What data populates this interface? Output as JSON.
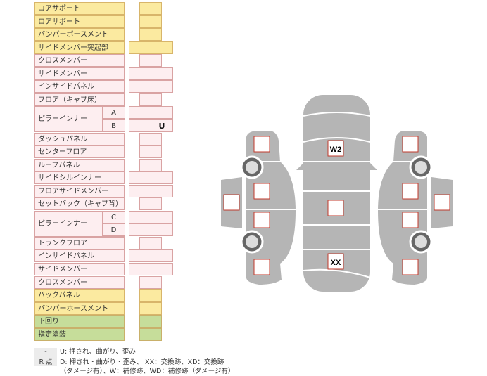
{
  "rows": [
    {
      "label": "コアサポート",
      "color": "y",
      "cells": 1
    },
    {
      "label": "ロアサポート",
      "color": "y",
      "cells": 1
    },
    {
      "label": "バンパーボースメント",
      "color": "y",
      "cells": 1
    },
    {
      "label": "サイドメンバー突起部",
      "color": "y",
      "cells": 2
    },
    {
      "label": "クロスメンバー",
      "color": "p",
      "cells": 1
    },
    {
      "label": "サイドメンバー",
      "color": "p",
      "cells": 2
    },
    {
      "label": "インサイドパネル",
      "color": "p",
      "cells": 2
    },
    {
      "label": "フロア（キャブ床）",
      "color": "p",
      "cells": 1
    },
    {
      "label": "ピラーインナー",
      "sub": "A",
      "color": "p",
      "cells": 2
    },
    {
      "label": "",
      "sub": "B",
      "color": "p",
      "cells": 2,
      "values": [
        "",
        "U"
      ]
    },
    {
      "label": "ダッシュパネル",
      "color": "p",
      "cells": 1
    },
    {
      "label": "センターフロア",
      "color": "p",
      "cells": 1
    },
    {
      "label": "ルーフパネル",
      "color": "p",
      "cells": 1
    },
    {
      "label": "サイドシルインナー",
      "color": "p",
      "cells": 2
    },
    {
      "label": "フロアサイドメンバー",
      "color": "p",
      "cells": 2
    },
    {
      "label": "セットバック（キャブ背）",
      "color": "p",
      "cells": 1
    },
    {
      "label": "ピラーインナー",
      "sub": "C",
      "color": "p",
      "cells": 2
    },
    {
      "label": "",
      "sub": "D",
      "color": "p",
      "cells": 2
    },
    {
      "label": "トランクフロア",
      "color": "p",
      "cells": 1
    },
    {
      "label": "インサイドパネル",
      "color": "p",
      "cells": 2
    },
    {
      "label": "サイドメンバー",
      "color": "p",
      "cells": 2
    },
    {
      "label": "クロスメンバー",
      "color": "p",
      "cells": 1
    },
    {
      "label": "バックパネル",
      "color": "y",
      "cells": 1
    },
    {
      "label": "バンパーホースメント",
      "color": "y",
      "cells": 1
    },
    {
      "label": "下回り",
      "color": "g",
      "cells": 1
    },
    {
      "label": "指定塗装",
      "color": "g",
      "cells": 1
    }
  ],
  "diagram": {
    "roof_mark": "W2",
    "rear_mark": "XX"
  },
  "legend": {
    "key1": "-",
    "line1": "U: 押され、曲がり、歪み",
    "key2": "R 点",
    "line2": "D: 押され・曲がり・歪み、 XX：交換跡、XD：交換跡",
    "line3": "（ダメージ有）、W：補修跡、WD：補修跡（ダメージ有）"
  },
  "colors": {
    "yellow": "#fbeaa0",
    "pink": "#fdeef0",
    "green": "#c6dd9a",
    "body": "#b5b5b5",
    "box_border": "#c0392b"
  }
}
